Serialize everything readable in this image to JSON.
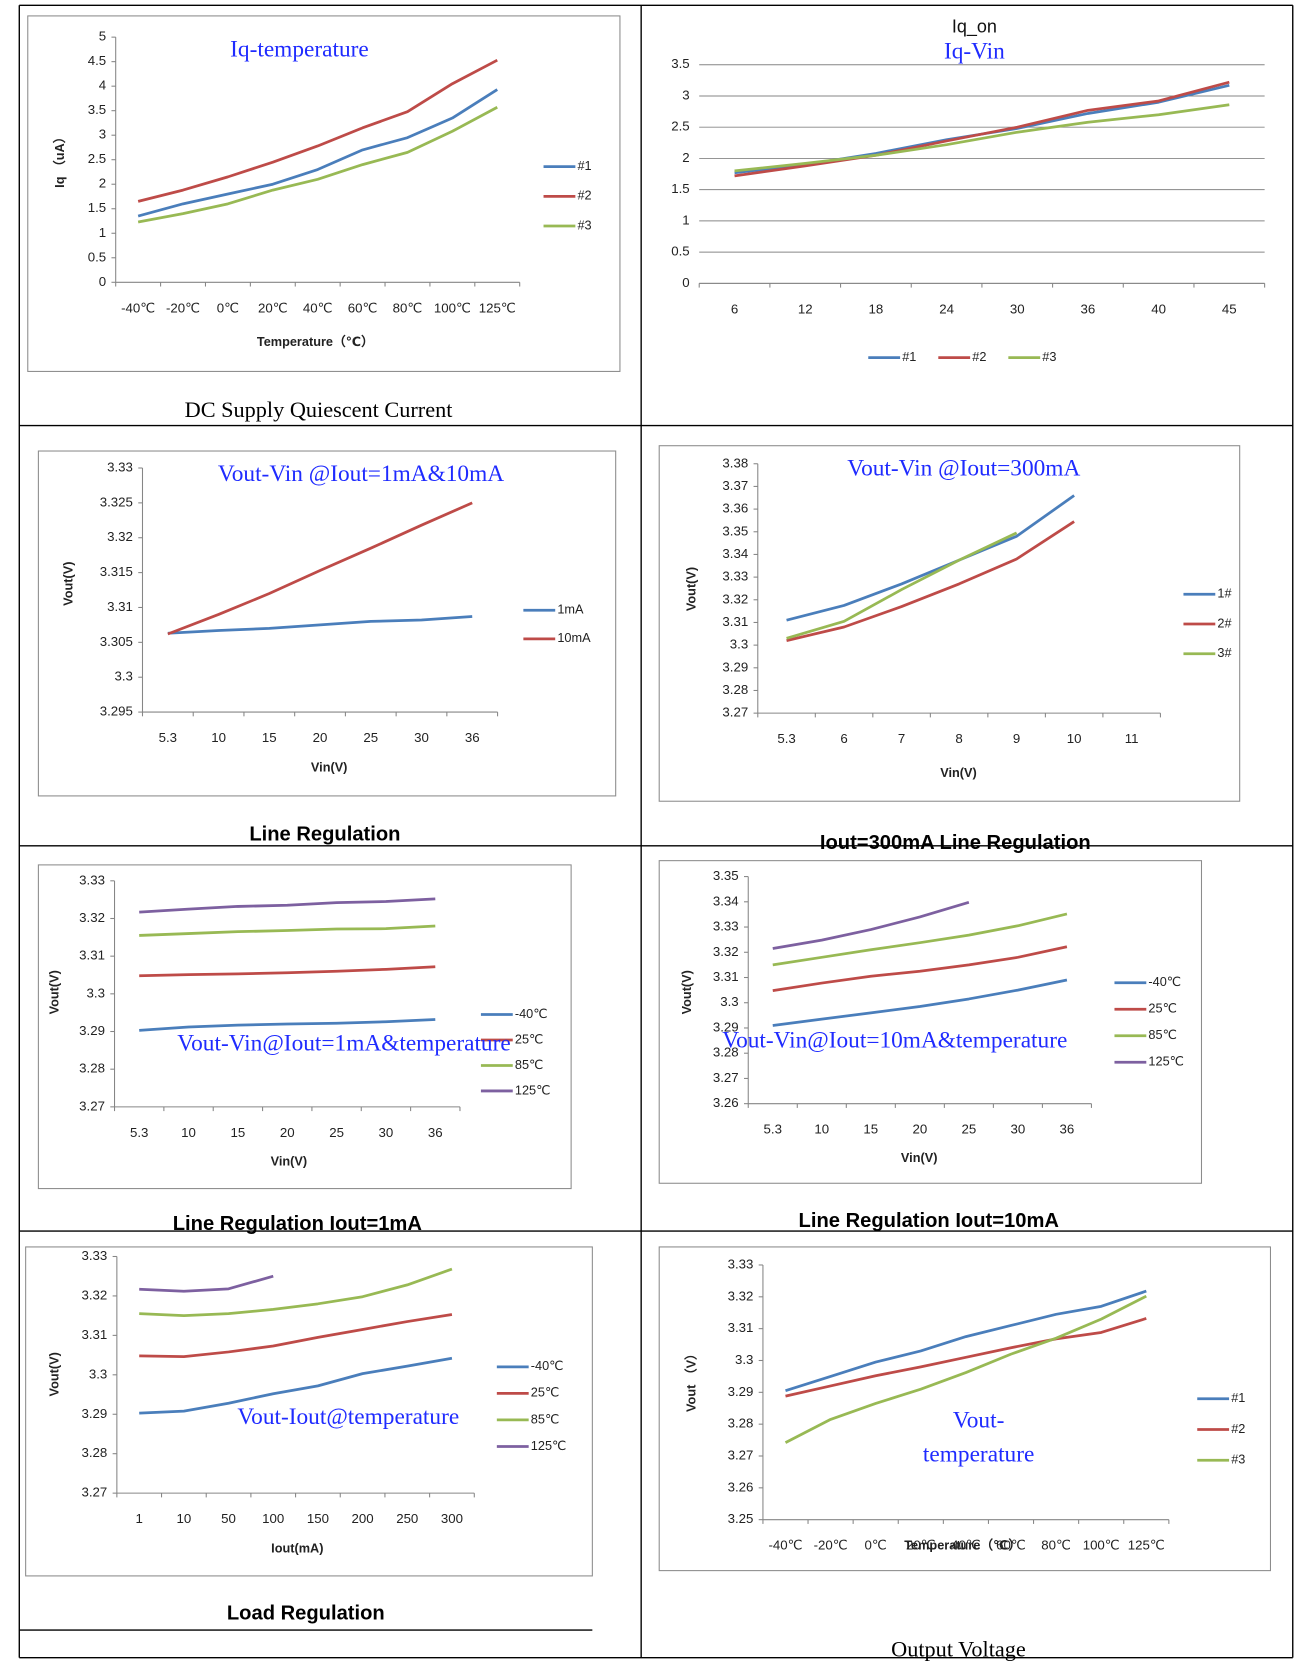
{
  "chart_data": [
    {
      "type": "line",
      "annotation": "Iq-temperature",
      "xlabel": "Temperature（℃）",
      "ylabel": "Iq （uA）",
      "categories": [
        "-40℃",
        "-20℃",
        "0℃",
        "20℃",
        "40℃",
        "60℃",
        "80℃",
        "100℃",
        "125℃"
      ],
      "ylim": [
        0,
        5
      ],
      "yticks": [
        0,
        0.5,
        1,
        1.5,
        2,
        2.5,
        3,
        3.5,
        4,
        4.5,
        5
      ],
      "grid": false,
      "legend": "right",
      "series": [
        {
          "name": "#1",
          "color": "#4a7ebb",
          "values": [
            1.35,
            1.6,
            1.8,
            2.0,
            2.3,
            2.7,
            2.95,
            3.35,
            3.93
          ]
        },
        {
          "name": "#2",
          "color": "#be4b48",
          "values": [
            1.65,
            1.88,
            2.15,
            2.45,
            2.78,
            3.15,
            3.48,
            4.05,
            4.53
          ]
        },
        {
          "name": "#3",
          "color": "#98b954",
          "values": [
            1.23,
            1.4,
            1.6,
            1.88,
            2.1,
            2.4,
            2.65,
            3.08,
            3.57
          ]
        }
      ]
    },
    {
      "type": "line",
      "title": "Iq_on",
      "annotation": "Iq-Vin",
      "categories": [
        "6",
        "12",
        "18",
        "24",
        "30",
        "36",
        "40",
        "45"
      ],
      "ylim": [
        0,
        3.5
      ],
      "yticks": [
        0,
        0.5,
        1,
        1.5,
        2,
        2.5,
        3,
        3.5
      ],
      "grid": true,
      "legend": "bottom",
      "series": [
        {
          "name": "#1",
          "color": "#4a7ebb",
          "values": [
            1.77,
            1.9,
            2.08,
            2.3,
            2.48,
            2.72,
            2.9,
            3.17
          ]
        },
        {
          "name": "#2",
          "color": "#be4b48",
          "values": [
            1.72,
            1.88,
            2.05,
            2.28,
            2.5,
            2.77,
            2.92,
            3.22
          ]
        },
        {
          "name": "#3",
          "color": "#98b954",
          "values": [
            1.8,
            1.92,
            2.05,
            2.22,
            2.42,
            2.58,
            2.7,
            2.86
          ]
        }
      ]
    },
    {
      "type": "line",
      "annotation": "Vout-Vin @Iout=1mA&10mA",
      "xlabel": "Vin(V)",
      "ylabel": "Vout(V)",
      "categories": [
        "5.3",
        "10",
        "15",
        "20",
        "25",
        "30",
        "36"
      ],
      "ylim": [
        3.295,
        3.33
      ],
      "yticks": [
        3.295,
        3.3,
        3.305,
        3.31,
        3.315,
        3.32,
        3.325,
        3.33
      ],
      "grid": false,
      "legend": "right",
      "series": [
        {
          "name": "1mA",
          "color": "#4a7ebb",
          "values": [
            3.3063,
            3.3067,
            3.307,
            3.3075,
            3.308,
            3.3082,
            3.3087
          ]
        },
        {
          "name": "10mA",
          "color": "#be4b48",
          "values": [
            3.3062,
            3.309,
            3.312,
            3.3153,
            3.3185,
            3.3218,
            3.325
          ]
        }
      ]
    },
    {
      "type": "line",
      "annotation": "Vout-Vin @Iout=300mA",
      "xlabel": "Vin(V)",
      "ylabel": "Vout(V)",
      "categories": [
        "5.3",
        "6",
        "7",
        "8",
        "9",
        "10",
        "11"
      ],
      "ylim": [
        3.27,
        3.38
      ],
      "yticks": [
        3.27,
        3.28,
        3.29,
        3.3,
        3.31,
        3.32,
        3.33,
        3.34,
        3.35,
        3.36,
        3.37,
        3.38
      ],
      "grid": false,
      "legend": "right",
      "series": [
        {
          "name": "1#",
          "color": "#4a7ebb",
          "values": [
            3.311,
            3.3175,
            3.327,
            3.3375,
            3.348,
            3.366,
            null
          ]
        },
        {
          "name": "2#",
          "color": "#be4b48",
          "values": [
            3.302,
            3.308,
            3.317,
            3.327,
            3.338,
            3.3545,
            null
          ]
        },
        {
          "name": "3#",
          "color": "#98b954",
          "values": [
            3.303,
            3.3105,
            3.3245,
            3.3375,
            3.3495,
            null,
            null
          ]
        }
      ]
    },
    {
      "type": "line",
      "annotation": "Vout-Vin@Iout=1mA&temperature",
      "xlabel": "Vin(V)",
      "ylabel": "Vout(V)",
      "categories": [
        "5.3",
        "10",
        "15",
        "20",
        "25",
        "30",
        "36"
      ],
      "ylim": [
        3.27,
        3.33
      ],
      "yticks": [
        3.27,
        3.28,
        3.29,
        3.3,
        3.31,
        3.32,
        3.33
      ],
      "grid": false,
      "legend": "right",
      "series": [
        {
          "name": "-40℃",
          "color": "#4a7ebb",
          "values": [
            3.2903,
            3.2912,
            3.2917,
            3.292,
            3.2922,
            3.2926,
            3.2932
          ]
        },
        {
          "name": "25℃",
          "color": "#be4b48",
          "values": [
            3.3048,
            3.3051,
            3.3053,
            3.3056,
            3.306,
            3.3065,
            3.3072
          ]
        },
        {
          "name": "85℃",
          "color": "#98b954",
          "values": [
            3.3155,
            3.316,
            3.3165,
            3.3168,
            3.3172,
            3.3173,
            3.318
          ]
        },
        {
          "name": "125℃",
          "color": "#7d60a0",
          "values": [
            3.3217,
            3.3225,
            3.3232,
            3.3235,
            3.3242,
            3.3245,
            3.3252
          ]
        }
      ]
    },
    {
      "type": "line",
      "annotation": "Vout-Vin@Iout=10mA&temperature",
      "xlabel": "Vin(V)",
      "ylabel": "Vout(V)",
      "categories": [
        "5.3",
        "10",
        "15",
        "20",
        "25",
        "30",
        "36"
      ],
      "ylim": [
        3.26,
        3.35
      ],
      "yticks": [
        3.26,
        3.27,
        3.28,
        3.29,
        3.3,
        3.31,
        3.32,
        3.33,
        3.34,
        3.35
      ],
      "grid": false,
      "legend": "right",
      "series": [
        {
          "name": "-40℃",
          "color": "#4a7ebb",
          "values": [
            3.291,
            3.2935,
            3.296,
            3.2985,
            3.3015,
            3.305,
            3.309
          ]
        },
        {
          "name": "25℃",
          "color": "#be4b48",
          "values": [
            3.3048,
            3.3078,
            3.3105,
            3.3125,
            3.315,
            3.318,
            3.3222
          ]
        },
        {
          "name": "85℃",
          "color": "#98b954",
          "values": [
            3.315,
            3.318,
            3.321,
            3.3238,
            3.3268,
            3.3305,
            3.3352
          ]
        },
        {
          "name": "125℃",
          "color": "#7d60a0",
          "values": [
            3.3215,
            3.3248,
            3.329,
            3.334,
            3.3398,
            null,
            null
          ]
        }
      ]
    },
    {
      "type": "line",
      "annotation": "Vout-Iout@temperature",
      "xlabel": "Iout(mA)",
      "ylabel": "Vout(V)",
      "categories": [
        "1",
        "10",
        "50",
        "100",
        "150",
        "200",
        "250",
        "300"
      ],
      "ylim": [
        3.27,
        3.33
      ],
      "yticks": [
        3.27,
        3.28,
        3.29,
        3.3,
        3.31,
        3.32,
        3.33
      ],
      "grid": false,
      "legend": "right",
      "series": [
        {
          "name": "-40℃",
          "color": "#4a7ebb",
          "values": [
            3.2903,
            3.2908,
            3.2928,
            3.2952,
            3.2972,
            3.3003,
            3.3022,
            3.3042
          ]
        },
        {
          "name": "25℃",
          "color": "#be4b48",
          "values": [
            3.3048,
            3.3046,
            3.3058,
            3.3073,
            3.3095,
            3.3115,
            3.3135,
            3.3153
          ]
        },
        {
          "name": "85℃",
          "color": "#98b954",
          "values": [
            3.3155,
            3.315,
            3.3155,
            3.3166,
            3.318,
            3.3198,
            3.3228,
            3.3268
          ]
        },
        {
          "name": "125℃",
          "color": "#7d60a0",
          "values": [
            3.3217,
            3.3212,
            3.3218,
            3.325,
            null,
            null,
            null,
            null
          ]
        }
      ]
    },
    {
      "type": "line",
      "annotation": "Vout-temperature",
      "xlabel": "Temperature（℃）",
      "ylabel": "Vout （V）",
      "categories": [
        "-40℃",
        "-20℃",
        "0℃",
        "20℃",
        "40℃",
        "60℃",
        "80℃",
        "100℃",
        "125℃"
      ],
      "ylim": [
        3.25,
        3.33
      ],
      "yticks": [
        3.25,
        3.26,
        3.27,
        3.28,
        3.29,
        3.3,
        3.31,
        3.32,
        3.33
      ],
      "grid": false,
      "legend": "right",
      "series": [
        {
          "name": "#1",
          "color": "#4a7ebb",
          "values": [
            3.2905,
            3.295,
            3.2995,
            3.303,
            3.3075,
            3.311,
            3.3145,
            3.317,
            3.3218
          ]
        },
        {
          "name": "#2",
          "color": "#be4b48",
          "values": [
            3.2888,
            3.292,
            3.2952,
            3.298,
            3.301,
            3.304,
            3.3068,
            3.3088,
            3.3132
          ]
        },
        {
          "name": "#3",
          "color": "#98b954",
          "values": [
            3.2742,
            3.2815,
            3.2865,
            3.291,
            3.2962,
            3.302,
            3.307,
            3.313,
            3.3202
          ]
        }
      ]
    }
  ],
  "captions": [
    "DC Supply Quiescent Current",
    "Line Regulation",
    "Iout=300mA   Line Regulation",
    "Line Regulation   Iout=1mA",
    "Line Regulation   Iout=10mA",
    "Load Regulation",
    "Output Voltage"
  ]
}
